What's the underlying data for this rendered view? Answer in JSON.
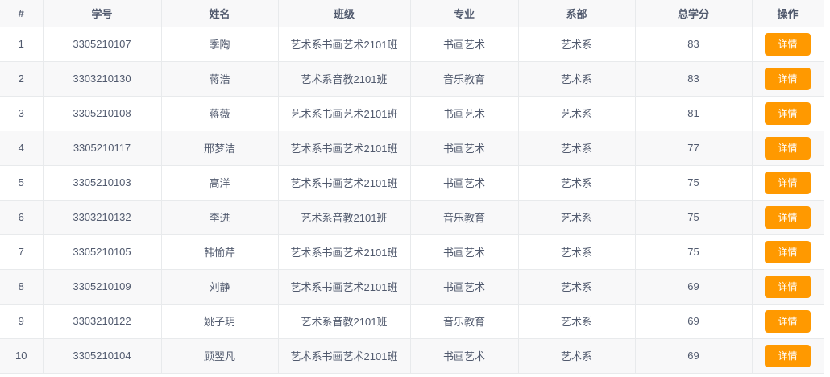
{
  "colors": {
    "accent": "#ff9900",
    "header_bg": "#f8f8f9",
    "stripe_bg": "#f8f8f9",
    "border": "#e8eaec",
    "text": "#515a6e"
  },
  "table": {
    "columns": [
      "#",
      "学号",
      "姓名",
      "班级",
      "专业",
      "系部",
      "总学分",
      "操作"
    ],
    "action_label": "详情",
    "rows": [
      {
        "index": "1",
        "student_id": "3305210107",
        "name": "季陶",
        "class_name": "艺术系书画艺术2101班",
        "major": "书画艺术",
        "department": "艺术系",
        "credits": "83"
      },
      {
        "index": "2",
        "student_id": "3303210130",
        "name": "蒋浩",
        "class_name": "艺术系音教2101班",
        "major": "音乐教育",
        "department": "艺术系",
        "credits": "83"
      },
      {
        "index": "3",
        "student_id": "3305210108",
        "name": "蒋薇",
        "class_name": "艺术系书画艺术2101班",
        "major": "书画艺术",
        "department": "艺术系",
        "credits": "81"
      },
      {
        "index": "4",
        "student_id": "3305210117",
        "name": "邢梦洁",
        "class_name": "艺术系书画艺术2101班",
        "major": "书画艺术",
        "department": "艺术系",
        "credits": "77"
      },
      {
        "index": "5",
        "student_id": "3305210103",
        "name": "高洋",
        "class_name": "艺术系书画艺术2101班",
        "major": "书画艺术",
        "department": "艺术系",
        "credits": "75"
      },
      {
        "index": "6",
        "student_id": "3303210132",
        "name": "李进",
        "class_name": "艺术系音教2101班",
        "major": "音乐教育",
        "department": "艺术系",
        "credits": "75"
      },
      {
        "index": "7",
        "student_id": "3305210105",
        "name": "韩愉芹",
        "class_name": "艺术系书画艺术2101班",
        "major": "书画艺术",
        "department": "艺术系",
        "credits": "75"
      },
      {
        "index": "8",
        "student_id": "3305210109",
        "name": "刘静",
        "class_name": "艺术系书画艺术2101班",
        "major": "书画艺术",
        "department": "艺术系",
        "credits": "69"
      },
      {
        "index": "9",
        "student_id": "3303210122",
        "name": "姚子玥",
        "class_name": "艺术系音教2101班",
        "major": "音乐教育",
        "department": "艺术系",
        "credits": "69"
      },
      {
        "index": "10",
        "student_id": "3305210104",
        "name": "顾翌凡",
        "class_name": "艺术系书画艺术2101班",
        "major": "书画艺术",
        "department": "艺术系",
        "credits": "69"
      }
    ]
  }
}
